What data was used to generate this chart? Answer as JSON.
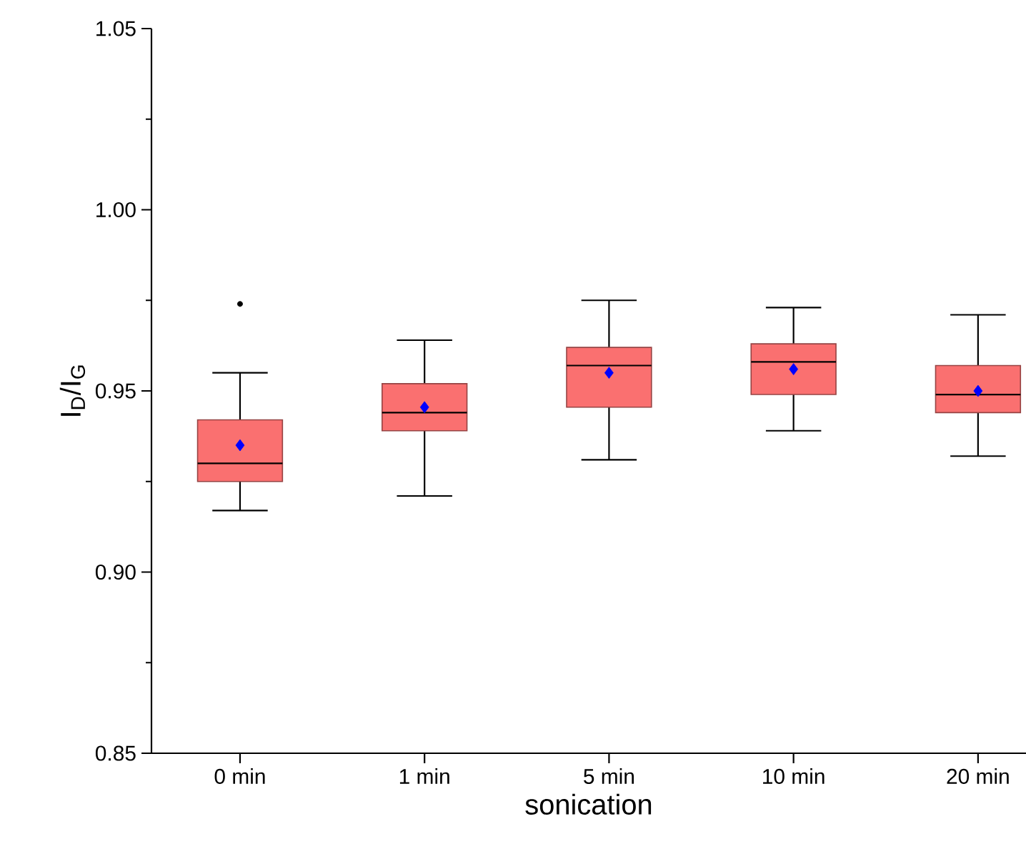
{
  "chart_data": {
    "type": "box",
    "xlabel": "sonication",
    "ylabel": "I$_{D}$/I$_{G}$",
    "categories": [
      "0 min",
      "1 min",
      "5 min",
      "10 min",
      "20 min"
    ],
    "series": [
      {
        "color": "#fa7070",
        "boxes": [
          {
            "low": 0.917,
            "q1": 0.925,
            "median": 0.93,
            "q3": 0.942,
            "high": 0.955,
            "mean": 0.935,
            "outliers": [
              0.974
            ]
          },
          {
            "low": 0.921,
            "q1": 0.939,
            "median": 0.944,
            "q3": 0.952,
            "high": 0.964,
            "mean": 0.9455
          },
          {
            "low": 0.931,
            "q1": 0.9455,
            "median": 0.957,
            "q3": 0.962,
            "high": 0.975,
            "mean": 0.955
          },
          {
            "low": 0.939,
            "q1": 0.949,
            "median": 0.958,
            "q3": 0.963,
            "high": 0.973,
            "mean": 0.956
          },
          {
            "low": 0.932,
            "q1": 0.944,
            "median": 0.949,
            "q3": 0.957,
            "high": 0.971,
            "mean": 0.95
          }
        ]
      }
    ],
    "ylim": [
      0.85,
      1.05
    ],
    "yticks": [
      {
        "value": 0.85,
        "label": "0.85"
      },
      {
        "value": 0.9,
        "label": "0.90"
      },
      {
        "value": 0.95,
        "label": "0.95"
      },
      {
        "value": 1.0,
        "label": "1.00"
      },
      {
        "value": 1.05,
        "label": "1.05"
      }
    ]
  }
}
